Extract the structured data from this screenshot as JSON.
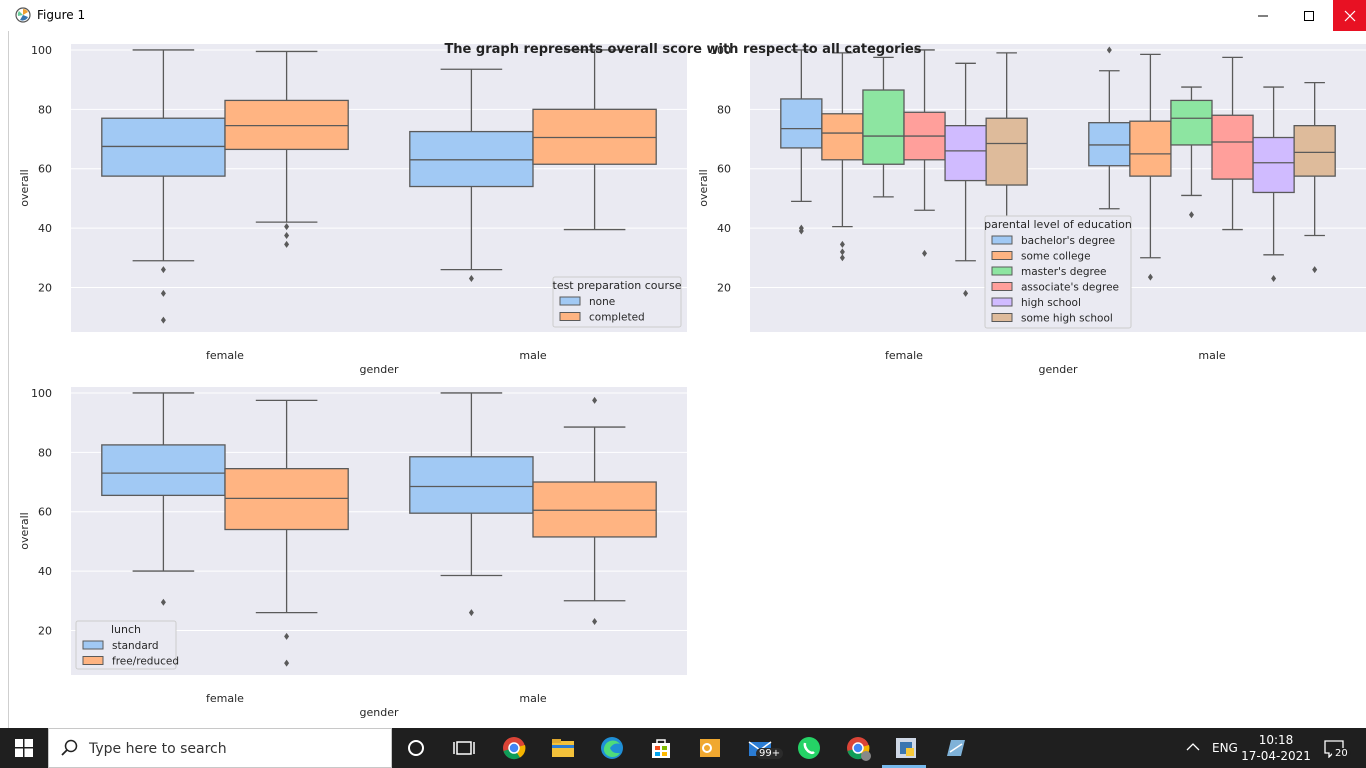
{
  "window": {
    "title": "Figure 1"
  },
  "figure_title": "The graph represents overall score with respect to all categories",
  "colors": {
    "plot_bg": "#eaeaf2",
    "palette": [
      "#a1c9f4",
      "#ffb482",
      "#8de5a1",
      "#ff9f9b",
      "#d0bbff",
      "#debb9b"
    ],
    "box_edge": "#5a5a5a"
  },
  "chart_data": [
    {
      "type": "box",
      "xlabel": "gender",
      "ylabel": "overall",
      "ylim": [
        5,
        102
      ],
      "yticks": [
        20,
        40,
        60,
        80,
        100
      ],
      "categories": [
        "female",
        "male"
      ],
      "legend": {
        "title": "test preparation course",
        "placement": "lower-right"
      },
      "series": [
        {
          "name": "none",
          "boxes": [
            {
              "whislo": 29,
              "q1": 57.5,
              "med": 67.5,
              "q3": 77,
              "whishi": 100,
              "fliers": [
                26,
                18,
                9
              ]
            },
            {
              "whislo": 26,
              "q1": 54,
              "med": 63,
              "q3": 72.5,
              "whishi": 93.5,
              "fliers": [
                23
              ]
            }
          ]
        },
        {
          "name": "completed",
          "boxes": [
            {
              "whislo": 42,
              "q1": 66.5,
              "med": 74.5,
              "q3": 83,
              "whishi": 99.5,
              "fliers": [
                40.5,
                37.5,
                34.5
              ]
            },
            {
              "whislo": 39.5,
              "q1": 61.5,
              "med": 70.5,
              "q3": 80,
              "whishi": 100,
              "fliers": []
            }
          ]
        }
      ]
    },
    {
      "type": "box",
      "xlabel": "gender",
      "ylabel": "overall",
      "ylim": [
        5,
        102
      ],
      "yticks": [
        20,
        40,
        60,
        80,
        100
      ],
      "categories": [
        "female",
        "male"
      ],
      "legend": {
        "title": "parental level of education",
        "placement": "lower-center"
      },
      "series": [
        {
          "name": "bachelor's degree",
          "boxes": [
            {
              "whislo": 49,
              "q1": 67,
              "med": 73.5,
              "q3": 83.5,
              "whishi": 100,
              "fliers": [
                40,
                39
              ]
            },
            {
              "whislo": 46.5,
              "q1": 61,
              "med": 68,
              "q3": 75.5,
              "whishi": 93,
              "fliers": [
                100
              ]
            }
          ]
        },
        {
          "name": "some college",
          "boxes": [
            {
              "whislo": 40.5,
              "q1": 63,
              "med": 72,
              "q3": 78.5,
              "whishi": 99,
              "fliers": [
                34.5,
                32,
                30
              ]
            },
            {
              "whislo": 30,
              "q1": 57.5,
              "med": 65,
              "q3": 76,
              "whishi": 98.5,
              "fliers": [
                23.5
              ]
            }
          ]
        },
        {
          "name": "master's degree",
          "boxes": [
            {
              "whislo": 50.5,
              "q1": 61.5,
              "med": 71,
              "q3": 86.5,
              "whishi": 97.5,
              "fliers": []
            },
            {
              "whislo": 51,
              "q1": 68,
              "med": 77,
              "q3": 83,
              "whishi": 87.5,
              "fliers": [
                44.5
              ]
            }
          ]
        },
        {
          "name": "associate's degree",
          "boxes": [
            {
              "whislo": 46,
              "q1": 63,
              "med": 71,
              "q3": 79,
              "whishi": 100,
              "fliers": [
                31.5
              ]
            },
            {
              "whislo": 39.5,
              "q1": 56.5,
              "med": 69,
              "q3": 78,
              "whishi": 97.5,
              "fliers": []
            }
          ]
        },
        {
          "name": "high school",
          "boxes": [
            {
              "whislo": 29,
              "q1": 56,
              "med": 66,
              "q3": 74.5,
              "whishi": 95.5,
              "fliers": [
                18
              ]
            },
            {
              "whislo": 31,
              "q1": 52,
              "med": 62,
              "q3": 70.5,
              "whishi": 87.5,
              "fliers": [
                23
              ]
            }
          ]
        },
        {
          "name": "some high school",
          "boxes": [
            {
              "whislo": 8,
              "q1": 54.5,
              "med": 68.5,
              "q3": 77,
              "whishi": 99,
              "fliers": []
            },
            {
              "whislo": 37.5,
              "q1": 57.5,
              "med": 65.5,
              "q3": 74.5,
              "whishi": 89,
              "fliers": [
                26
              ]
            }
          ]
        }
      ]
    },
    {
      "type": "box",
      "xlabel": "gender",
      "ylabel": "overall",
      "ylim": [
        5,
        102
      ],
      "yticks": [
        20,
        40,
        60,
        80,
        100
      ],
      "categories": [
        "female",
        "male"
      ],
      "legend": {
        "title": "lunch",
        "placement": "lower-left"
      },
      "series": [
        {
          "name": "standard",
          "boxes": [
            {
              "whislo": 40,
              "q1": 65.5,
              "med": 73,
              "q3": 82.5,
              "whishi": 100,
              "fliers": [
                29.5
              ]
            },
            {
              "whislo": 38.5,
              "q1": 59.5,
              "med": 68.5,
              "q3": 78.5,
              "whishi": 100,
              "fliers": [
                26
              ]
            }
          ]
        },
        {
          "name": "free/reduced",
          "boxes": [
            {
              "whislo": 26,
              "q1": 54,
              "med": 64.5,
              "q3": 74.5,
              "whishi": 97.5,
              "fliers": [
                18,
                9
              ]
            },
            {
              "whislo": 30,
              "q1": 51.5,
              "med": 60.5,
              "q3": 70,
              "whishi": 88.5,
              "fliers": [
                97.5,
                23
              ]
            }
          ]
        }
      ]
    }
  ],
  "taskbar": {
    "search_placeholder": "Type here to search",
    "mail_badge": "99+",
    "language": "ENG",
    "time": "10:18",
    "date": "17-04-2021",
    "notification_count": "20",
    "icons": [
      "task-view-icon",
      "chrome-icon",
      "file-explorer-icon",
      "edge-icon",
      "store-icon",
      "outlook-icon",
      "mail-icon",
      "whatsapp-icon",
      "chrome-profile-icon",
      "python-icon",
      "notepad-icon"
    ]
  }
}
